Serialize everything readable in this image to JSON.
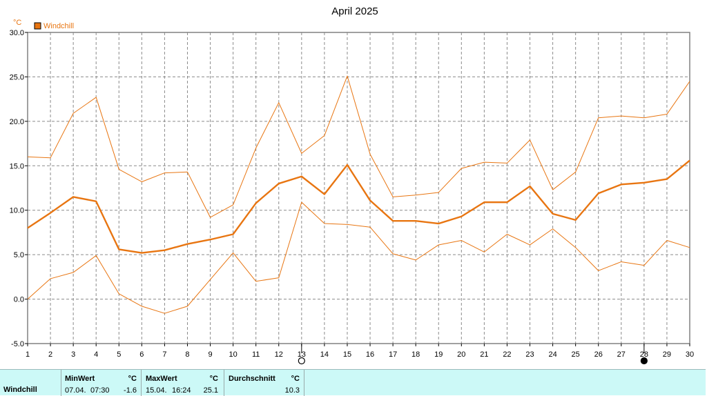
{
  "chart_data": {
    "type": "line",
    "title": "April 2025",
    "unit_label": "°C",
    "legend": [
      {
        "name": "Windchill",
        "color": "#e87511"
      }
    ],
    "x": [
      1,
      2,
      3,
      4,
      5,
      6,
      7,
      8,
      9,
      10,
      11,
      12,
      13,
      14,
      15,
      16,
      17,
      18,
      19,
      20,
      21,
      22,
      23,
      24,
      25,
      26,
      27,
      28,
      29,
      30
    ],
    "xlim": [
      1,
      30
    ],
    "ylim": [
      -5,
      30
    ],
    "yticks": [
      -5,
      0,
      5,
      10,
      15,
      20,
      25,
      30
    ],
    "ytick_labels": [
      "-5.0",
      "0.0",
      "5.0",
      "10.0",
      "15.0",
      "20.0",
      "25.0",
      "30.0"
    ],
    "grid": true,
    "series": [
      {
        "name": "Windchill",
        "role": "avg",
        "color": "#e87511",
        "values": [
          8.0,
          9.7,
          11.5,
          11.0,
          5.6,
          5.2,
          5.5,
          6.2,
          6.7,
          7.3,
          10.8,
          13.0,
          13.8,
          11.8,
          15.1,
          11.1,
          8.8,
          8.8,
          8.5,
          9.3,
          10.9,
          10.9,
          12.7,
          9.6,
          8.9,
          11.9,
          12.9,
          13.1,
          13.5,
          15.6
        ]
      },
      {
        "role": "max",
        "color": "#e87511",
        "values": [
          16.0,
          15.9,
          20.9,
          22.7,
          14.6,
          13.2,
          14.2,
          14.3,
          9.2,
          10.6,
          17.0,
          22.1,
          16.4,
          18.4,
          25.1,
          16.3,
          11.5,
          11.7,
          12.0,
          14.7,
          15.4,
          15.3,
          17.9,
          12.3,
          14.3,
          20.4,
          20.6,
          20.4,
          20.8,
          24.5
        ]
      },
      {
        "role": "min",
        "color": "#e87511",
        "values": [
          0.0,
          2.3,
          3.0,
          4.9,
          0.6,
          -0.8,
          -1.6,
          -0.8,
          2.2,
          5.2,
          2.0,
          2.4,
          10.9,
          8.5,
          8.4,
          8.1,
          5.1,
          4.4,
          6.1,
          6.6,
          5.3,
          7.3,
          6.1,
          7.9,
          5.8,
          3.2,
          4.2,
          3.8,
          6.6,
          5.8
        ]
      }
    ],
    "markers": [
      {
        "day": 13,
        "symbol": "open-circle"
      },
      {
        "day": 28,
        "symbol": "filled-circle"
      }
    ]
  },
  "stats_table": {
    "row_label": "Windchill",
    "min": {
      "header": "MinWert",
      "unit": "°C",
      "date": "07.04.",
      "time": "07:30",
      "value": "-1.6"
    },
    "max": {
      "header": "MaxWert",
      "unit": "°C",
      "date": "15.04.",
      "time": "16:24",
      "value": "25.1"
    },
    "avg": {
      "header": "Durchschnitt",
      "unit": "°C",
      "value": "10.3"
    }
  }
}
